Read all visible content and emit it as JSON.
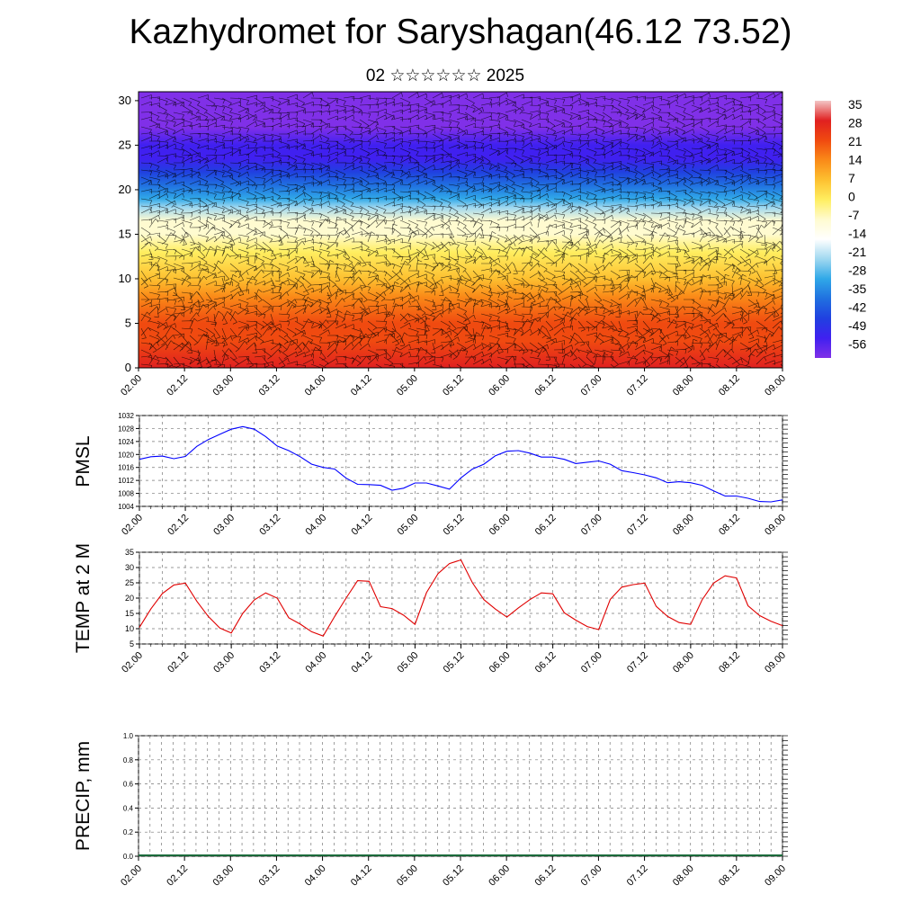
{
  "title": "Kazhydromet for Saryshagan(46.12 73.52)",
  "subtitle": "02 ☆☆☆☆☆☆ 2025",
  "time_ticks": [
    "02.00",
    "02.12",
    "03.00",
    "03.12",
    "04.00",
    "04.12",
    "05.00",
    "05.12",
    "06.00",
    "06.12",
    "07.00",
    "07.12",
    "08.00",
    "08.12",
    "09.00"
  ],
  "chart_data": [
    {
      "type": "heatmap",
      "name": "cross_section",
      "x_categories": [
        "02.00",
        "02.12",
        "03.00",
        "03.12",
        "04.00",
        "04.12",
        "05.00",
        "05.12",
        "06.00",
        "06.12",
        "07.00",
        "07.12",
        "08.00",
        "08.12",
        "09.00"
      ],
      "ylim": [
        0,
        31
      ],
      "yticks": [
        0,
        5,
        10,
        15,
        20,
        25,
        30
      ],
      "colorbar_labels": [
        "35",
        "28",
        "21",
        "14",
        "7",
        "0",
        "-7",
        "-14",
        "-21",
        "-28",
        "-35",
        "-42",
        "-49",
        "-56"
      ],
      "colorbar_stops": [
        "#f3c6c6",
        "#e02020",
        "#f04a10",
        "#fa8a18",
        "#fdc030",
        "#ffee60",
        "#fffbd0",
        "#ffffff",
        "#a0d8f0",
        "#30a8e8",
        "#2070e0",
        "#2040e0",
        "#4020f0",
        "#8030e8"
      ],
      "temperature_profile": {
        "height": [
          0,
          3,
          5,
          8,
          10,
          13,
          15,
          16.5,
          18,
          19,
          20.5,
          22,
          23.5,
          25,
          27,
          31
        ],
        "value": [
          28,
          23,
          18,
          12,
          6,
          0,
          -6,
          -12,
          -20,
          -28,
          -36,
          -44,
          -52,
          -56,
          -58,
          -60
        ]
      },
      "wind_barbs": true
    },
    {
      "type": "line",
      "name": "PMSL",
      "ylabel": "PMSL",
      "ylim": [
        1004,
        1032
      ],
      "yticks": [
        1004,
        1008,
        1012,
        1016,
        1020,
        1024,
        1028,
        1032
      ],
      "x_hours": [
        0,
        3,
        6,
        9,
        12,
        15,
        18,
        21,
        24,
        27,
        30,
        33,
        36,
        39,
        42,
        45,
        48,
        51,
        54,
        57,
        60,
        63,
        66,
        69,
        72,
        75,
        78,
        81,
        84,
        87,
        90,
        93,
        96,
        99,
        102,
        105,
        108,
        111,
        114,
        117,
        120,
        123,
        126,
        129,
        132,
        135,
        138,
        141,
        144,
        147,
        150,
        153,
        156,
        159,
        162,
        165,
        168
      ],
      "values": [
        1018.5,
        1019.3,
        1019.5,
        1018.7,
        1019.4,
        1022.5,
        1024.6,
        1026.2,
        1027.8,
        1028.6,
        1027.8,
        1025.5,
        1022.6,
        1021.2,
        1019.3,
        1017.0,
        1016.0,
        1015.5,
        1012.7,
        1010.8,
        1010.7,
        1010.5,
        1009.0,
        1009.6,
        1011.2,
        1011.2,
        1010.3,
        1009.3,
        1012.8,
        1015.5,
        1017.0,
        1019.6,
        1021.0,
        1021.2,
        1020.4,
        1019.2,
        1019.2,
        1018.5,
        1017.2,
        1017.6,
        1018.0,
        1017.0,
        1015.0,
        1014.4,
        1013.7,
        1012.8,
        1011.3,
        1011.6,
        1011.3,
        1010.5,
        1008.8,
        1007.2,
        1007.2,
        1006.5,
        1005.5,
        1005.4,
        1006.0
      ],
      "color": "#0000ff"
    },
    {
      "type": "line",
      "name": "TEMP at 2 M",
      "ylabel": "TEMP at 2 M",
      "ylim": [
        5,
        35
      ],
      "yticks": [
        5,
        10,
        15,
        20,
        25,
        30,
        35
      ],
      "x_hours": [
        0,
        3,
        6,
        9,
        12,
        15,
        18,
        21,
        24,
        27,
        30,
        33,
        36,
        39,
        42,
        45,
        48,
        51,
        54,
        57,
        60,
        63,
        66,
        69,
        72,
        75,
        78,
        81,
        84,
        87,
        90,
        93,
        96,
        99,
        102,
        105,
        108,
        111,
        114,
        117,
        120,
        123,
        126,
        129,
        132,
        135,
        138,
        141,
        144,
        147,
        150,
        153,
        156,
        159,
        162,
        165,
        168
      ],
      "values": [
        10.4,
        16.5,
        21.5,
        24.3,
        24.9,
        19.0,
        14.0,
        10.2,
        8.6,
        15.0,
        19.4,
        21.7,
        20.0,
        13.6,
        11.5,
        9.0,
        7.6,
        14.0,
        20.0,
        25.7,
        25.5,
        17.2,
        16.6,
        14.4,
        11.4,
        21.8,
        28.0,
        31.3,
        32.5,
        25.0,
        19.5,
        16.4,
        13.8,
        16.8,
        19.5,
        21.7,
        21.4,
        15.2,
        12.8,
        10.7,
        9.7,
        19.6,
        23.6,
        24.4,
        24.9,
        17.3,
        14.0,
        12.0,
        11.4,
        19.4,
        24.9,
        27.3,
        26.6,
        17.5,
        14.3,
        12.4,
        11.0
      ],
      "color": "#e00000"
    },
    {
      "type": "bar",
      "name": "PRECIP, mm",
      "ylabel": "PRECIP, mm",
      "ylim": [
        0,
        1.0
      ],
      "yticks": [
        "0.0",
        "0.2",
        "0.4",
        "0.6",
        "0.8",
        "1.0"
      ],
      "values": []
    }
  ]
}
